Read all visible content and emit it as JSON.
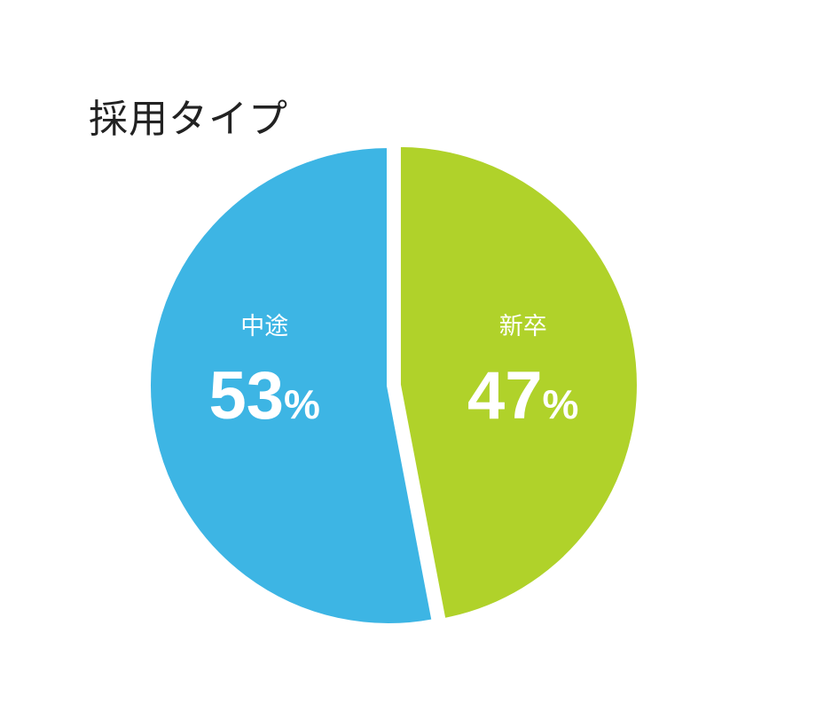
{
  "chart_data": {
    "type": "pie",
    "title": "採用タイプ",
    "slices": [
      {
        "label": "中途",
        "value": 53,
        "display_value": "53",
        "unit": "%",
        "color": "#3db5e4"
      },
      {
        "label": "新卒",
        "value": 47,
        "display_value": "47",
        "unit": "%",
        "color": "#b0d22a",
        "exploded": true
      }
    ],
    "start_angle_deg": 0,
    "direction": "clockwise",
    "background": "#ffffff"
  }
}
